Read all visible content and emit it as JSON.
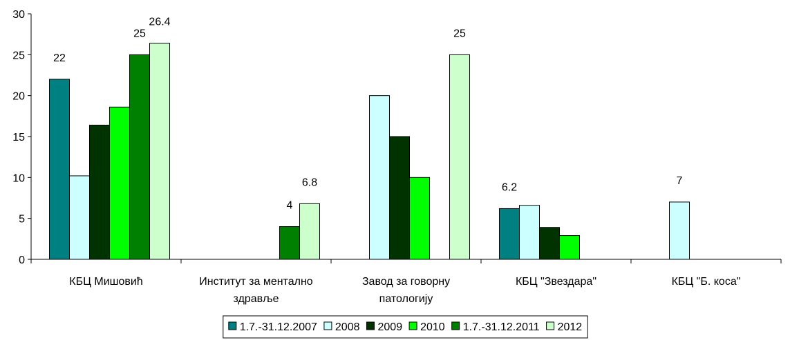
{
  "chart_data": {
    "type": "bar",
    "categories": [
      "КБЦ Мишовић",
      "Институт за ментално здравље",
      "Завод за говорну патологију",
      "КБЦ \"Звездара\"",
      "КБЦ \"Б. коса\""
    ],
    "series": [
      {
        "name": "1.7.-31.12.2007",
        "color": "#008080",
        "values": [
          22,
          null,
          null,
          6.2,
          null
        ],
        "value_labels": [
          "22",
          null,
          null,
          "6.2",
          null
        ]
      },
      {
        "name": "2008",
        "color": "#ccffff",
        "values": [
          10.2,
          null,
          20,
          6.6,
          7
        ],
        "value_labels": [
          null,
          null,
          null,
          null,
          "7"
        ]
      },
      {
        "name": "2009",
        "color": "#003300",
        "values": [
          16.4,
          null,
          15,
          3.9,
          null
        ],
        "value_labels": [
          null,
          null,
          null,
          null,
          null
        ]
      },
      {
        "name": "2010",
        "color": "#00ff00",
        "values": [
          18.6,
          null,
          10,
          2.9,
          null
        ],
        "value_labels": [
          null,
          null,
          null,
          null,
          null
        ]
      },
      {
        "name": "1.7.-31.12.2011",
        "color": "#008000",
        "values": [
          25,
          4,
          null,
          null,
          null
        ],
        "value_labels": [
          "25",
          "4",
          null,
          null,
          null
        ]
      },
      {
        "name": "2012",
        "color": "#ccffcc",
        "values": [
          26.4,
          6.8,
          25,
          null,
          null
        ],
        "value_labels": [
          "26.4",
          "6.8",
          "25",
          null,
          null
        ]
      }
    ],
    "ylim": [
      0,
      30
    ],
    "yticks": [
      0,
      5,
      10,
      15,
      20,
      25,
      30
    ],
    "grid": false,
    "legend": "bottom"
  }
}
